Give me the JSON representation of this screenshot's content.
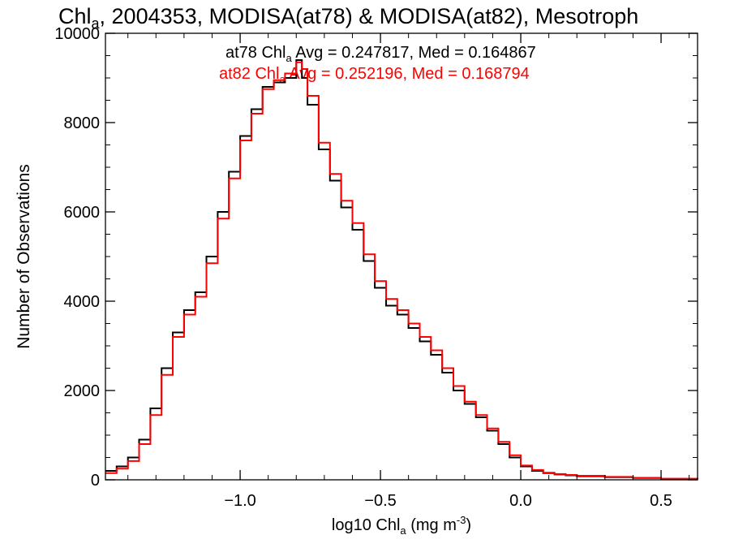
{
  "chart_data": {
    "type": "line",
    "title": {
      "pre": "Chl",
      "sub": "a",
      "post": ", 2004353, MODISA(at78) & MODISA(at82), Mesotroph"
    },
    "xlabel": {
      "pre": "log10 Chl",
      "sub": "a",
      "mid": " (mg m",
      "sup": "-3",
      "post": ")"
    },
    "ylabel": "Number of Observations",
    "xlim": [
      -1.48,
      0.63
    ],
    "ylim": [
      0,
      10000
    ],
    "xticks": [
      {
        "value": -1.0,
        "label": "−1.0"
      },
      {
        "value": -0.5,
        "label": "−0.5"
      },
      {
        "value": 0.0,
        "label": "0.0"
      },
      {
        "value": 0.5,
        "label": "0.5"
      }
    ],
    "yticks": [
      {
        "value": 0,
        "label": "0"
      },
      {
        "value": 2000,
        "label": "2000"
      },
      {
        "value": 4000,
        "label": "4000"
      },
      {
        "value": 6000,
        "label": "6000"
      },
      {
        "value": 8000,
        "label": "8000"
      },
      {
        "value": 10000,
        "label": "10000"
      }
    ],
    "annotations": [
      {
        "pre": "at78 Chl",
        "sub": "a",
        "post": " Avg = 0.247817, Med = 0.164867",
        "color": "#000000"
      },
      {
        "pre": "at82 Chl",
        "sub": "a",
        "post": " Avg = 0.252196, Med = 0.168794",
        "color": "#ff0000"
      }
    ],
    "series": [
      {
        "color": "#000000",
        "x": [
          -1.48,
          -1.44,
          -1.4,
          -1.36,
          -1.32,
          -1.28,
          -1.24,
          -1.2,
          -1.16,
          -1.12,
          -1.08,
          -1.04,
          -1.0,
          -0.96,
          -0.92,
          -0.88,
          -0.84,
          -0.8,
          -0.78,
          -0.76,
          -0.72,
          -0.68,
          -0.64,
          -0.6,
          -0.56,
          -0.52,
          -0.48,
          -0.44,
          -0.4,
          -0.36,
          -0.32,
          -0.28,
          -0.24,
          -0.2,
          -0.16,
          -0.12,
          -0.08,
          -0.04,
          0.0,
          0.04,
          0.08,
          0.12,
          0.16,
          0.2,
          0.3,
          0.4,
          0.5,
          0.63
        ],
        "y": [
          200,
          300,
          500,
          900,
          1600,
          2500,
          3300,
          3800,
          4200,
          5000,
          6000,
          6900,
          7700,
          8300,
          8800,
          8900,
          9000,
          9400,
          9000,
          8400,
          7400,
          6700,
          6100,
          5600,
          4900,
          4300,
          3900,
          3700,
          3400,
          3100,
          2800,
          2400,
          2000,
          1700,
          1400,
          1100,
          800,
          500,
          300,
          200,
          150,
          120,
          100,
          80,
          60,
          40,
          20,
          10
        ]
      },
      {
        "color": "#ff0000",
        "x": [
          -1.48,
          -1.44,
          -1.4,
          -1.36,
          -1.32,
          -1.28,
          -1.24,
          -1.2,
          -1.16,
          -1.12,
          -1.08,
          -1.04,
          -1.0,
          -0.96,
          -0.92,
          -0.88,
          -0.84,
          -0.8,
          -0.78,
          -0.76,
          -0.72,
          -0.68,
          -0.64,
          -0.6,
          -0.56,
          -0.52,
          -0.48,
          -0.44,
          -0.4,
          -0.36,
          -0.32,
          -0.28,
          -0.24,
          -0.2,
          -0.16,
          -0.12,
          -0.08,
          -0.04,
          0.0,
          0.04,
          0.08,
          0.12,
          0.16,
          0.2,
          0.3,
          0.4,
          0.5,
          0.63
        ],
        "y": [
          150,
          250,
          420,
          800,
          1450,
          2350,
          3200,
          3700,
          4100,
          4850,
          5850,
          6750,
          7600,
          8200,
          8750,
          8950,
          9100,
          9350,
          9200,
          8600,
          7550,
          6850,
          6250,
          5750,
          5050,
          4450,
          4050,
          3800,
          3500,
          3200,
          2900,
          2500,
          2100,
          1750,
          1450,
          1150,
          850,
          550,
          320,
          220,
          160,
          130,
          110,
          90,
          65,
          45,
          25,
          12
        ]
      }
    ]
  }
}
